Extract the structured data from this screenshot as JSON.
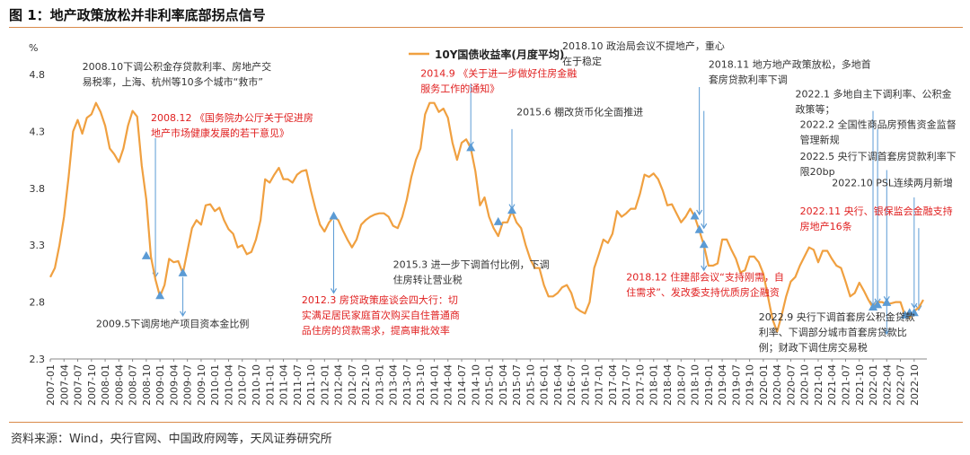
{
  "figure_title": "图 1：地产政策放松并非利率底部拐点信号",
  "source": "资料来源：Wind，央行官网、中国政府网等，天风证券研究所",
  "colors": {
    "line": "#f0a040",
    "marker": "#5b9bd5",
    "ann_black": "#333333",
    "ann_red": "#e02020",
    "rule": "#d98a4a"
  },
  "chart_data": {
    "type": "line",
    "unit_label": "%",
    "legend": "10Y国债收益率(月度平均)",
    "legend_position": "top-center",
    "ylim": [
      2.3,
      4.8
    ],
    "yticks": [
      "2.3",
      "2.8",
      "3.3",
      "3.8",
      "4.3",
      "4.8"
    ],
    "xlim": [
      "2007-01",
      "2022-12"
    ],
    "xtick_labels": [
      "2007-01",
      "2007-04",
      "2007-07",
      "2007-10",
      "2008-01",
      "2008-04",
      "2008-07",
      "2008-10",
      "2009-01",
      "2009-04",
      "2009-07",
      "2009-10",
      "2010-01",
      "2010-04",
      "2010-07",
      "2010-10",
      "2011-01",
      "2011-04",
      "2011-07",
      "2011-10",
      "2012-01",
      "2012-04",
      "2012-07",
      "2012-10",
      "2013-01",
      "2013-04",
      "2013-07",
      "2013-10",
      "2014-01",
      "2014-04",
      "2014-07",
      "2014-10",
      "2015-01",
      "2015-04",
      "2015-07",
      "2015-10",
      "2016-01",
      "2016-04",
      "2016-07",
      "2016-10",
      "2017-01",
      "2017-04",
      "2017-07",
      "2017-10",
      "2018-01",
      "2018-04",
      "2018-07",
      "2018-10",
      "2019-01",
      "2019-04",
      "2019-07",
      "2019-10",
      "2020-01",
      "2020-04",
      "2020-07",
      "2020-10",
      "2021-01",
      "2021-04",
      "2021-07",
      "2021-10",
      "2022-01",
      "2022-04",
      "2022-07",
      "2022-10"
    ],
    "series": [
      {
        "name": "10Y国债收益率(月度平均)",
        "points": [
          [
            "2007-01",
            3.02
          ],
          [
            "2007-02",
            3.1
          ],
          [
            "2007-03",
            3.3
          ],
          [
            "2007-04",
            3.55
          ],
          [
            "2007-05",
            3.9
          ],
          [
            "2007-06",
            4.3
          ],
          [
            "2007-07",
            4.4
          ],
          [
            "2007-08",
            4.28
          ],
          [
            "2007-09",
            4.42
          ],
          [
            "2007-10",
            4.45
          ],
          [
            "2007-11",
            4.55
          ],
          [
            "2007-12",
            4.47
          ],
          [
            "2008-01",
            4.35
          ],
          [
            "2008-02",
            4.15
          ],
          [
            "2008-03",
            4.1
          ],
          [
            "2008-04",
            4.03
          ],
          [
            "2008-05",
            4.15
          ],
          [
            "2008-06",
            4.35
          ],
          [
            "2008-07",
            4.48
          ],
          [
            "2008-08",
            4.43
          ],
          [
            "2008-09",
            4.0
          ],
          [
            "2008-10",
            3.7
          ],
          [
            "2008-11",
            3.2
          ],
          [
            "2008-12",
            3.0
          ],
          [
            "2009-01",
            2.85
          ],
          [
            "2009-02",
            2.95
          ],
          [
            "2009-03",
            3.18
          ],
          [
            "2009-04",
            3.15
          ],
          [
            "2009-05",
            3.16
          ],
          [
            "2009-06",
            3.05
          ],
          [
            "2009-07",
            3.25
          ],
          [
            "2009-08",
            3.45
          ],
          [
            "2009-09",
            3.52
          ],
          [
            "2009-10",
            3.48
          ],
          [
            "2009-11",
            3.65
          ],
          [
            "2009-12",
            3.66
          ],
          [
            "2010-01",
            3.6
          ],
          [
            "2010-02",
            3.63
          ],
          [
            "2010-03",
            3.52
          ],
          [
            "2010-04",
            3.44
          ],
          [
            "2010-05",
            3.4
          ],
          [
            "2010-06",
            3.28
          ],
          [
            "2010-07",
            3.3
          ],
          [
            "2010-08",
            3.22
          ],
          [
            "2010-09",
            3.24
          ],
          [
            "2010-10",
            3.35
          ],
          [
            "2010-11",
            3.52
          ],
          [
            "2010-12",
            3.88
          ],
          [
            "2011-01",
            3.85
          ],
          [
            "2011-02",
            3.92
          ],
          [
            "2011-03",
            3.98
          ],
          [
            "2011-04",
            3.88
          ],
          [
            "2011-05",
            3.88
          ],
          [
            "2011-06",
            3.85
          ],
          [
            "2011-07",
            3.92
          ],
          [
            "2011-08",
            3.95
          ],
          [
            "2011-09",
            3.96
          ],
          [
            "2011-10",
            3.78
          ],
          [
            "2011-11",
            3.62
          ],
          [
            "2011-12",
            3.48
          ],
          [
            "2012-01",
            3.42
          ],
          [
            "2012-02",
            3.5
          ],
          [
            "2012-03",
            3.55
          ],
          [
            "2012-04",
            3.52
          ],
          [
            "2012-05",
            3.43
          ],
          [
            "2012-06",
            3.35
          ],
          [
            "2012-07",
            3.28
          ],
          [
            "2012-08",
            3.35
          ],
          [
            "2012-09",
            3.48
          ],
          [
            "2012-10",
            3.52
          ],
          [
            "2012-11",
            3.55
          ],
          [
            "2012-12",
            3.57
          ],
          [
            "2013-01",
            3.58
          ],
          [
            "2013-02",
            3.58
          ],
          [
            "2013-03",
            3.55
          ],
          [
            "2013-04",
            3.47
          ],
          [
            "2013-05",
            3.45
          ],
          [
            "2013-06",
            3.55
          ],
          [
            "2013-07",
            3.7
          ],
          [
            "2013-08",
            3.9
          ],
          [
            "2013-09",
            4.05
          ],
          [
            "2013-10",
            4.15
          ],
          [
            "2013-11",
            4.45
          ],
          [
            "2013-12",
            4.55
          ],
          [
            "2014-01",
            4.55
          ],
          [
            "2014-02",
            4.47
          ],
          [
            "2014-03",
            4.5
          ],
          [
            "2014-04",
            4.42
          ],
          [
            "2014-05",
            4.2
          ],
          [
            "2014-06",
            4.05
          ],
          [
            "2014-07",
            4.2
          ],
          [
            "2014-08",
            4.23
          ],
          [
            "2014-09",
            4.15
          ],
          [
            "2014-10",
            3.95
          ],
          [
            "2014-11",
            3.65
          ],
          [
            "2014-12",
            3.72
          ],
          [
            "2015-01",
            3.55
          ],
          [
            "2015-02",
            3.45
          ],
          [
            "2015-03",
            3.38
          ],
          [
            "2015-04",
            3.5
          ],
          [
            "2015-05",
            3.5
          ],
          [
            "2015-06",
            3.6
          ],
          [
            "2015-07",
            3.5
          ],
          [
            "2015-08",
            3.45
          ],
          [
            "2015-09",
            3.3
          ],
          [
            "2015-10",
            3.18
          ],
          [
            "2015-11",
            3.1
          ],
          [
            "2015-12",
            3.1
          ],
          [
            "2016-01",
            2.95
          ],
          [
            "2016-02",
            2.85
          ],
          [
            "2016-03",
            2.85
          ],
          [
            "2016-04",
            2.88
          ],
          [
            "2016-05",
            2.93
          ],
          [
            "2016-06",
            2.95
          ],
          [
            "2016-07",
            2.88
          ],
          [
            "2016-08",
            2.75
          ],
          [
            "2016-09",
            2.72
          ],
          [
            "2016-10",
            2.7
          ],
          [
            "2016-11",
            2.8
          ],
          [
            "2016-12",
            3.1
          ],
          [
            "2017-01",
            3.22
          ],
          [
            "2017-02",
            3.35
          ],
          [
            "2017-03",
            3.32
          ],
          [
            "2017-04",
            3.4
          ],
          [
            "2017-05",
            3.6
          ],
          [
            "2017-06",
            3.55
          ],
          [
            "2017-07",
            3.58
          ],
          [
            "2017-08",
            3.62
          ],
          [
            "2017-09",
            3.62
          ],
          [
            "2017-10",
            3.75
          ],
          [
            "2017-11",
            3.92
          ],
          [
            "2017-12",
            3.9
          ],
          [
            "2018-01",
            3.93
          ],
          [
            "2018-02",
            3.88
          ],
          [
            "2018-03",
            3.78
          ],
          [
            "2018-04",
            3.65
          ],
          [
            "2018-05",
            3.66
          ],
          [
            "2018-06",
            3.58
          ],
          [
            "2018-07",
            3.5
          ],
          [
            "2018-08",
            3.55
          ],
          [
            "2018-09",
            3.62
          ],
          [
            "2018-10",
            3.55
          ],
          [
            "2018-11",
            3.43
          ],
          [
            "2018-12",
            3.3
          ],
          [
            "2019-01",
            3.12
          ],
          [
            "2019-02",
            3.12
          ],
          [
            "2019-03",
            3.14
          ],
          [
            "2019-04",
            3.35
          ],
          [
            "2019-05",
            3.35
          ],
          [
            "2019-06",
            3.26
          ],
          [
            "2019-07",
            3.18
          ],
          [
            "2019-08",
            3.06
          ],
          [
            "2019-09",
            3.08
          ],
          [
            "2019-10",
            3.2
          ],
          [
            "2019-11",
            3.2
          ],
          [
            "2019-12",
            3.15
          ],
          [
            "2020-01",
            3.05
          ],
          [
            "2020-02",
            2.85
          ],
          [
            "2020-03",
            2.65
          ],
          [
            "2020-04",
            2.54
          ],
          [
            "2020-05",
            2.68
          ],
          [
            "2020-06",
            2.85
          ],
          [
            "2020-07",
            2.98
          ],
          [
            "2020-08",
            3.02
          ],
          [
            "2020-09",
            3.12
          ],
          [
            "2020-10",
            3.2
          ],
          [
            "2020-11",
            3.28
          ],
          [
            "2020-12",
            3.26
          ],
          [
            "2021-01",
            3.15
          ],
          [
            "2021-02",
            3.25
          ],
          [
            "2021-03",
            3.25
          ],
          [
            "2021-04",
            3.18
          ],
          [
            "2021-05",
            3.12
          ],
          [
            "2021-06",
            3.1
          ],
          [
            "2021-07",
            2.98
          ],
          [
            "2021-08",
            2.85
          ],
          [
            "2021-09",
            2.88
          ],
          [
            "2021-10",
            2.97
          ],
          [
            "2021-11",
            2.9
          ],
          [
            "2021-12",
            2.82
          ],
          [
            "2022-01",
            2.75
          ],
          [
            "2022-02",
            2.8
          ],
          [
            "2022-03",
            2.8
          ],
          [
            "2022-04",
            2.78
          ],
          [
            "2022-05",
            2.79
          ],
          [
            "2022-06",
            2.8
          ],
          [
            "2022-07",
            2.8
          ],
          [
            "2022-08",
            2.68
          ],
          [
            "2022-09",
            2.66
          ],
          [
            "2022-10",
            2.72
          ],
          [
            "2022-11",
            2.75
          ],
          [
            "2022-12",
            2.82
          ]
        ]
      }
    ],
    "markers": [
      [
        "2008-10",
        3.2
      ],
      [
        "2009-01",
        2.85
      ],
      [
        "2009-06",
        3.05
      ],
      [
        "2012-03",
        3.55
      ],
      [
        "2014-09",
        4.15
      ],
      [
        "2015-03",
        3.5
      ],
      [
        "2015-06",
        3.6
      ],
      [
        "2018-10",
        3.55
      ],
      [
        "2018-11",
        3.43
      ],
      [
        "2018-12",
        3.3
      ],
      [
        "2022-01",
        2.75
      ],
      [
        "2022-02",
        2.77
      ],
      [
        "2022-04",
        2.79
      ],
      [
        "2022-08",
        2.68
      ],
      [
        "2022-09",
        2.7
      ],
      [
        "2022-10",
        2.7
      ]
    ],
    "arrows": [
      [
        "2008-12",
        4.24,
        3.02
      ],
      [
        "2009-06",
        3.02,
        2.68
      ],
      [
        "2012-03",
        3.52,
        2.88
      ],
      [
        "2014-09",
        4.72,
        4.17
      ],
      [
        "2015-06",
        4.32,
        3.62
      ],
      [
        "2018-11",
        4.69,
        3.57
      ],
      [
        "2018-12",
        4.48,
        3.45
      ],
      [
        "2018-12",
        3.28,
        3.08
      ],
      [
        "2022-01",
        4.48,
        2.77
      ],
      [
        "2022-02",
        4.32,
        2.79
      ],
      [
        "2022-04",
        3.96,
        2.81
      ],
      [
        "2022-04",
        2.77,
        2.52
      ],
      [
        "2022-10",
        3.72,
        2.75
      ],
      [
        "2022-11",
        3.45,
        2.73
      ]
    ],
    "annotations": [
      {
        "lines": [
          "2008.10下调公积金存贷款利率、房地产交",
          "易税率，上海、杭州等10多个城市“救市”"
        ],
        "color": "black",
        "at": [
          "2007-08",
          4.84
        ]
      },
      {
        "lines": [
          "2008.12 《国务院办公厅关于促进房",
          "地产市场健康发展的若干意见》"
        ],
        "color": "red",
        "at": [
          "2008-11",
          4.39
        ]
      },
      {
        "lines": [
          "2009.5下调房地产项目资本金比例"
        ],
        "color": "black",
        "at": [
          "2007-11",
          2.58
        ]
      },
      {
        "lines": [
          "2012.3 房贷政策座谈会四大行：切",
          "实满足居民家庭首次购买自住普通商",
          "品住房的贷款需求，提高审批效率"
        ],
        "color": "red",
        "at": [
          "2011-08",
          2.79
        ]
      },
      {
        "lines": [
          "2014.9 《关于进一步做好住房金融",
          "服务工作的通知》"
        ],
        "color": "red",
        "at": [
          "2013-10",
          4.78
        ]
      },
      {
        "lines": [
          "2015.6 棚改货币化全面推进"
        ],
        "color": "black",
        "at": [
          "2015-07",
          4.44
        ]
      },
      {
        "lines": [
          "2015.3 进一步下调首付比例，下调",
          "住房转让营业税"
        ],
        "color": "black",
        "at": [
          "2013-04",
          3.1
        ]
      },
      {
        "lines": [
          "2018.10 政治局会议不提地产，重心",
          "在于稳定"
        ],
        "color": "black",
        "at": [
          "2016-05",
          5.02
        ]
      },
      {
        "lines": [
          "2018.11 地方地产政策放松，多地首",
          "套房贷款利率下调"
        ],
        "color": "black",
        "at": [
          "2019-01",
          4.86
        ]
      },
      {
        "lines": [
          "2018.12 住建部会议“支持刚需，自",
          "住需求”、发改委支持优质房企融资"
        ],
        "color": "red",
        "at": [
          "2017-07",
          2.99
        ]
      },
      {
        "lines": [
          "2022.1 多地自主下调利率、公积金",
          "政策等；"
        ],
        "color": "black",
        "at": [
          "2020-08",
          4.6
        ]
      },
      {
        "lines": [
          "2022.2 全国性商品房预售资金监督",
          "管理新规"
        ],
        "color": "black",
        "at": [
          "2020-09",
          4.33
        ]
      },
      {
        "lines": [
          "2022.5 央行下调首套房贷款利率下",
          "限20bp"
        ],
        "color": "black",
        "at": [
          "2020-09",
          4.05
        ]
      },
      {
        "lines": [
          "2022.10 PSL连续两月新增"
        ],
        "color": "black",
        "at": [
          "2021-04",
          3.82
        ]
      },
      {
        "lines": [
          "2022.11 央行、银保监会金融支持",
          "房地产16条"
        ],
        "color": "red",
        "at": [
          "2020-09",
          3.57
        ]
      },
      {
        "lines": [
          "2022.9 央行下调首套房公积金贷款",
          "利率、下调部分城市首套房贷款比",
          "例；财政下调住房交易税"
        ],
        "color": "black",
        "at": [
          "2019-12",
          2.64
        ]
      }
    ]
  }
}
